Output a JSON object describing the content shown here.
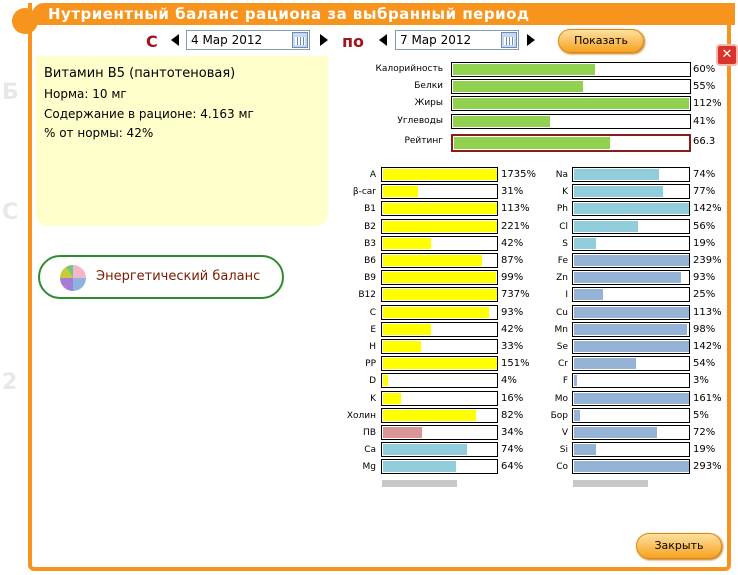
{
  "dialog": {
    "title": "Нутриентный баланс рациона за выбранный период",
    "close_button": "Закрыть"
  },
  "period": {
    "from_label": "С",
    "to_label": "по",
    "from_value": "4 Мар 2012",
    "to_value": "7 Мар 2012",
    "show_button": "Показать"
  },
  "info": {
    "name": "Витамин B5 (пантотеновая)",
    "norm": "Норма: 10 мг",
    "content": "Содержание в рационе: 4.163 мг",
    "percent": "% от нормы: 42%"
  },
  "energy_link": "Энергетический баланс",
  "colors": {
    "green": "#92d050",
    "yellow": "#ffff00",
    "blue": "#92cddc",
    "steel": "#95b3d7",
    "pink": "#da9694",
    "orange": "#f7941d"
  },
  "summary": [
    {
      "label": "Калорийность",
      "value": 60,
      "pct": "60%"
    },
    {
      "label": "Белки",
      "value": 55,
      "pct": "55%"
    },
    {
      "label": "Жиры",
      "value": 112,
      "pct": "112%"
    },
    {
      "label": "Углеводы",
      "value": 41,
      "pct": "41%"
    },
    {
      "label": "Рейтинг",
      "value": 66.3,
      "pct": "66.3"
    }
  ],
  "left_nutrients": [
    {
      "label": "A",
      "value": 1735,
      "pct": "1735%",
      "color": "yellow"
    },
    {
      "label": "β-car",
      "value": 31,
      "pct": "31%",
      "color": "yellow"
    },
    {
      "label": "B1",
      "value": 113,
      "pct": "113%",
      "color": "yellow"
    },
    {
      "label": "B2",
      "value": 221,
      "pct": "221%",
      "color": "yellow"
    },
    {
      "label": "B3",
      "value": 42,
      "pct": "42%",
      "color": "yellow"
    },
    {
      "label": "B6",
      "value": 87,
      "pct": "87%",
      "color": "yellow"
    },
    {
      "label": "B9",
      "value": 99,
      "pct": "99%",
      "color": "yellow"
    },
    {
      "label": "B12",
      "value": 737,
      "pct": "737%",
      "color": "yellow"
    },
    {
      "label": "C",
      "value": 93,
      "pct": "93%",
      "color": "yellow"
    },
    {
      "label": "E",
      "value": 42,
      "pct": "42%",
      "color": "yellow"
    },
    {
      "label": "H",
      "value": 33,
      "pct": "33%",
      "color": "yellow"
    },
    {
      "label": "PP",
      "value": 151,
      "pct": "151%",
      "color": "yellow"
    },
    {
      "label": "D",
      "value": 4,
      "pct": "4%",
      "color": "yellow"
    },
    {
      "label": "K",
      "value": 16,
      "pct": "16%",
      "color": "yellow"
    },
    {
      "label": "Холин",
      "value": 82,
      "pct": "82%",
      "color": "yellow"
    },
    {
      "label": "ПВ",
      "value": 34,
      "pct": "34%",
      "color": "pink"
    },
    {
      "label": "Ca",
      "value": 74,
      "pct": "74%",
      "color": "blue"
    },
    {
      "label": "Mg",
      "value": 64,
      "pct": "64%",
      "color": "blue"
    }
  ],
  "right_nutrients": [
    {
      "label": "Na",
      "value": 74,
      "pct": "74%",
      "color": "blue"
    },
    {
      "label": "K",
      "value": 77,
      "pct": "77%",
      "color": "blue"
    },
    {
      "label": "Ph",
      "value": 142,
      "pct": "142%",
      "color": "blue"
    },
    {
      "label": "Cl",
      "value": 56,
      "pct": "56%",
      "color": "blue"
    },
    {
      "label": "S",
      "value": 19,
      "pct": "19%",
      "color": "blue"
    },
    {
      "label": "Fe",
      "value": 239,
      "pct": "239%",
      "color": "steel"
    },
    {
      "label": "Zn",
      "value": 93,
      "pct": "93%",
      "color": "steel"
    },
    {
      "label": "I",
      "value": 25,
      "pct": "25%",
      "color": "steel"
    },
    {
      "label": "Cu",
      "value": 113,
      "pct": "113%",
      "color": "steel"
    },
    {
      "label": "Mn",
      "value": 98,
      "pct": "98%",
      "color": "steel"
    },
    {
      "label": "Se",
      "value": 142,
      "pct": "142%",
      "color": "steel"
    },
    {
      "label": "Cr",
      "value": 54,
      "pct": "54%",
      "color": "steel"
    },
    {
      "label": "F",
      "value": 3,
      "pct": "3%",
      "color": "steel"
    },
    {
      "label": "Mo",
      "value": 161,
      "pct": "161%",
      "color": "steel"
    },
    {
      "label": "Бор",
      "value": 5,
      "pct": "5%",
      "color": "steel"
    },
    {
      "label": "V",
      "value": 72,
      "pct": "72%",
      "color": "steel"
    },
    {
      "label": "Si",
      "value": 19,
      "pct": "19%",
      "color": "steel"
    },
    {
      "label": "Co",
      "value": 293,
      "pct": "293%",
      "color": "steel"
    }
  ]
}
